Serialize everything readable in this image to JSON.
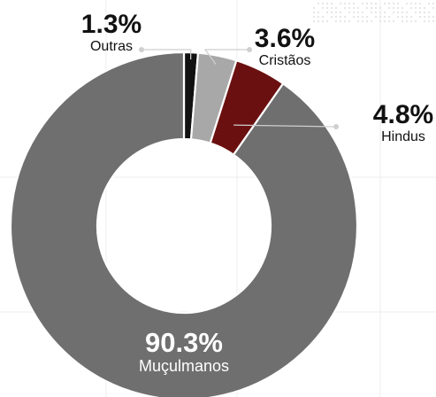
{
  "chart_data": {
    "type": "pie",
    "donut": true,
    "categories": [
      "Muçulmanos",
      "Hindus",
      "Cristãos",
      "Outras"
    ],
    "values": [
      90.3,
      4.8,
      3.6,
      1.3
    ],
    "value_labels": [
      "90.3%",
      "4.8%",
      "3.6%",
      "1.3%"
    ],
    "colors": [
      "#6f6f6f",
      "#6b1010",
      "#a8a8a8",
      "#111111"
    ],
    "title": "",
    "legend": "none"
  }
}
